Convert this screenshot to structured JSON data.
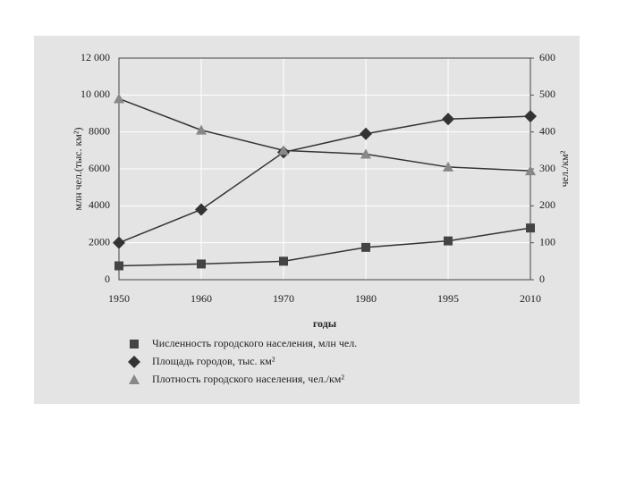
{
  "chart_data": {
    "type": "line",
    "y_label": "млн чел.(тыс. км²)",
    "y2_label": "чел./км²",
    "x_label": "годы",
    "categories": [
      "1950",
      "1960",
      "1970",
      "1980",
      "1995",
      "2010"
    ],
    "series": [
      {
        "name": "Численность городского населения, млн чел.",
        "color": "#444",
        "marker": "square",
        "values": [
          750,
          850,
          1000,
          1750,
          2100,
          2800
        ]
      },
      {
        "name": "Площадь городов, тыс. км²",
        "color": "#333",
        "marker": "diamond",
        "values": [
          2000,
          3800,
          6900,
          7900,
          8700,
          8850
        ]
      },
      {
        "name": "Плотность городского населения, чел./км²",
        "color": "#888",
        "marker": "triangle",
        "axis": "y2",
        "values": [
          490,
          405,
          350,
          340,
          305,
          295
        ]
      }
    ],
    "ylim": [
      0,
      12000
    ],
    "yticks": [
      0,
      2000,
      4000,
      6000,
      8000,
      {
        "value": 10000,
        "label": "10 000"
      },
      {
        "value": 12000,
        "label": "12 000"
      }
    ],
    "y2lim": [
      0,
      600
    ],
    "y2ticks": [
      0,
      100,
      200,
      300,
      400,
      500,
      600
    ],
    "grid": true,
    "legend": "bottom"
  }
}
